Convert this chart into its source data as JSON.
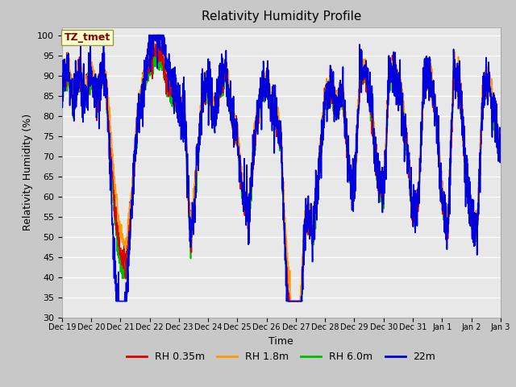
{
  "title": "Relativity Humidity Profile",
  "xlabel": "Time",
  "ylabel": "Relativity Humidity (%)",
  "ylim": [
    30,
    102
  ],
  "yticks": [
    30,
    35,
    40,
    45,
    50,
    55,
    60,
    65,
    70,
    75,
    80,
    85,
    90,
    95,
    100
  ],
  "colors": {
    "RH 0.35m": "#dd0000",
    "RH 1.8m": "#ff9900",
    "RH 6.0m": "#00bb00",
    "22m": "#0000dd"
  },
  "legend_labels": [
    "RH 0.35m",
    "RH 1.8m",
    "RH 6.0m",
    "22m"
  ],
  "xtick_labels": [
    "Dec 19",
    "Dec 20",
    "Dec 21",
    "Dec 22",
    "Dec 23",
    "Dec 24",
    "Dec 25",
    "Dec 26",
    "Dec 27",
    "Dec 28",
    "Dec 29",
    "Dec 30",
    "Dec 31",
    "Jan 1",
    "Jan 2",
    "Jan 3"
  ],
  "annotation_text": "TZ_tmet",
  "annotation_color": "#880000",
  "annotation_bg": "#ffffcc",
  "bg_color": "#e0e0e0",
  "plot_bg": "#e8e8e8",
  "linewidth": 1.2,
  "num_points": 2000
}
